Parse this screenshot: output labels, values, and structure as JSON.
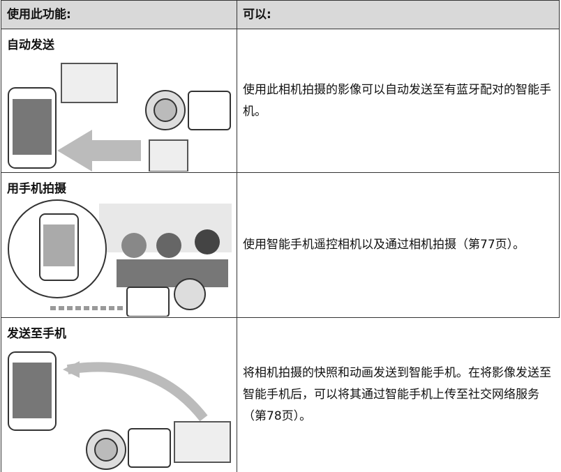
{
  "table": {
    "header": [
      "使用此功能:",
      "可以:"
    ],
    "rows": [
      {
        "title": "自动发送",
        "description": "使用此相机拍摄的影像可以自动发送至有蓝牙配对的智能手机。"
      },
      {
        "title": "用手机拍摄",
        "description": "使用智能手机遥控相机以及通过相机拍摄（第77页）。"
      },
      {
        "title": "发送至手机",
        "description": "将相机拍摄的快照和动画发送到智能手机。在将影像发送至智能手机后，可以将其通过智能手机上传至社交网络服务（第78页）。"
      }
    ]
  }
}
